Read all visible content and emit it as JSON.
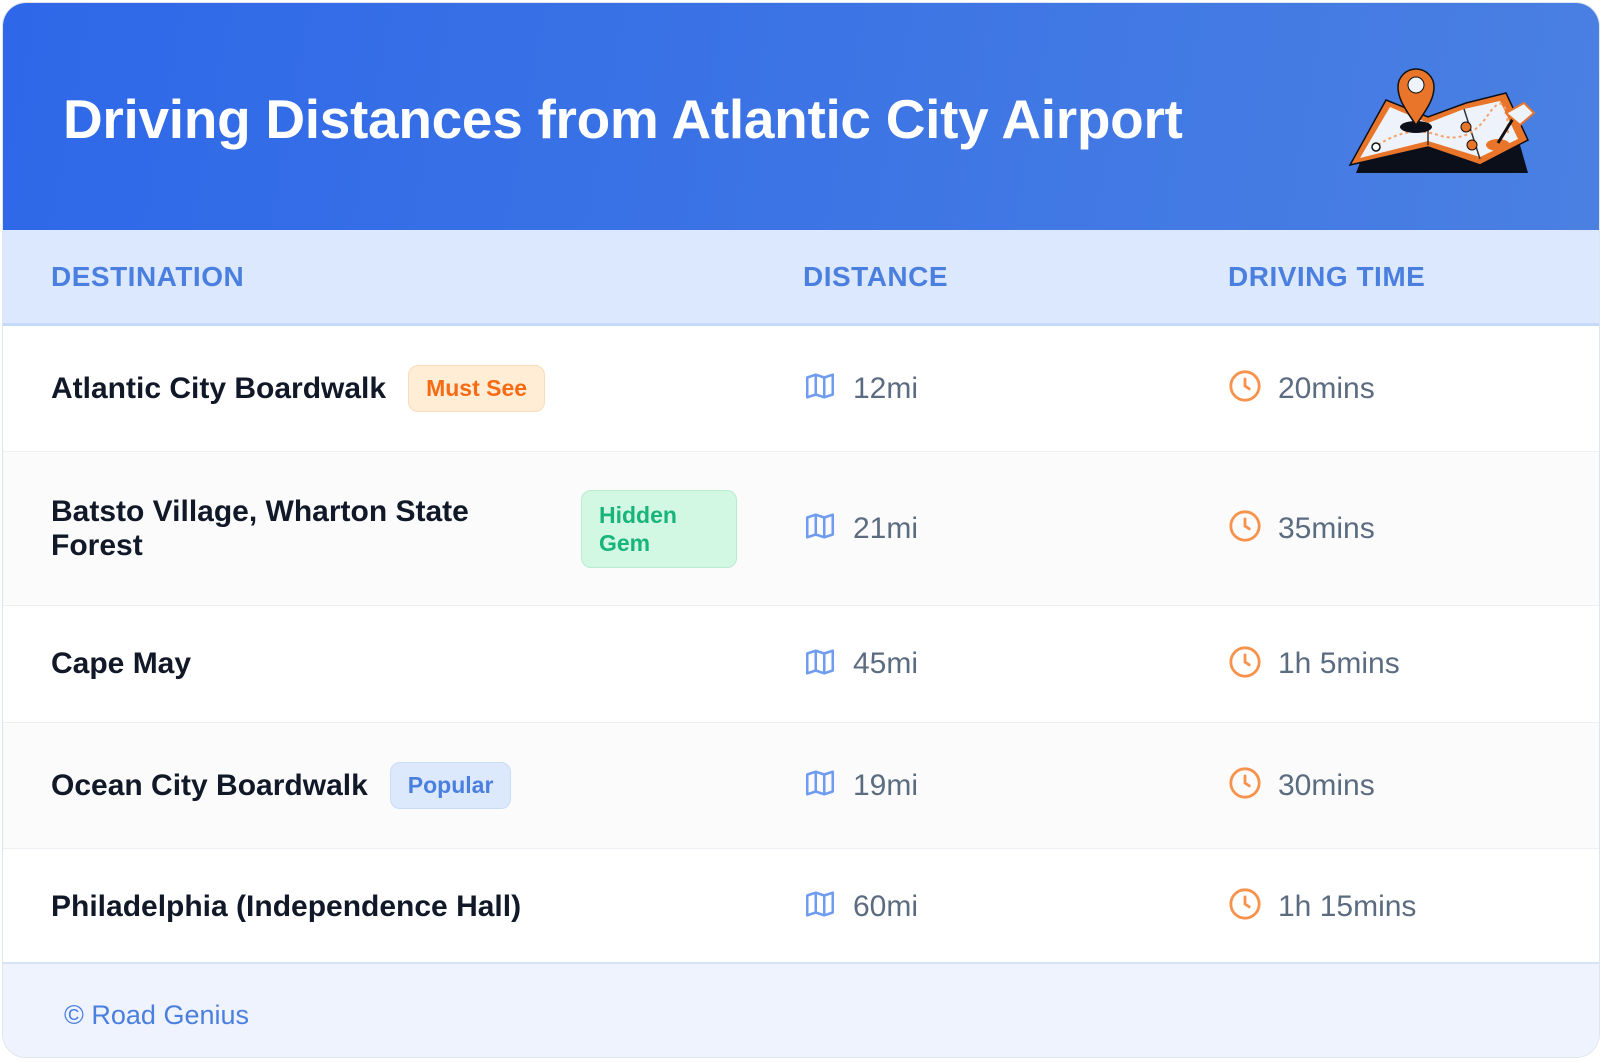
{
  "header": {
    "title": "Driving Distances from Atlantic City Airport",
    "logo_icon": "folded-map-with-pin-icon"
  },
  "columns": [
    "DESTINATION",
    "DISTANCE",
    "DRIVING TIME"
  ],
  "rows": [
    {
      "destination": "Atlantic City Boardwalk",
      "badge": "Must See",
      "badge_type": "must",
      "distance": "12mi",
      "time": "20mins"
    },
    {
      "destination": "Batsto Village, Wharton State Forest",
      "badge": "Hidden Gem",
      "badge_type": "gem",
      "distance": "21mi",
      "time": "35mins"
    },
    {
      "destination": "Cape May",
      "badge": null,
      "distance": "45mi",
      "time": "1h 5mins"
    },
    {
      "destination": "Ocean City Boardwalk",
      "badge": "Popular",
      "badge_type": "pop",
      "distance": "19mi",
      "time": "30mins"
    },
    {
      "destination": "Philadelphia (Independence Hall)",
      "badge": null,
      "distance": "60mi",
      "time": "1h 15mins"
    }
  ],
  "icons": {
    "distance": "map-icon",
    "time": "clock-icon"
  },
  "colors": {
    "header": "#2e68e8",
    "accent": "#4a7fe0",
    "must_see": "#f76b15",
    "hidden_gem": "#18b57a",
    "clock": "#f7934c"
  },
  "footer": {
    "copyright": "© Road Genius"
  }
}
